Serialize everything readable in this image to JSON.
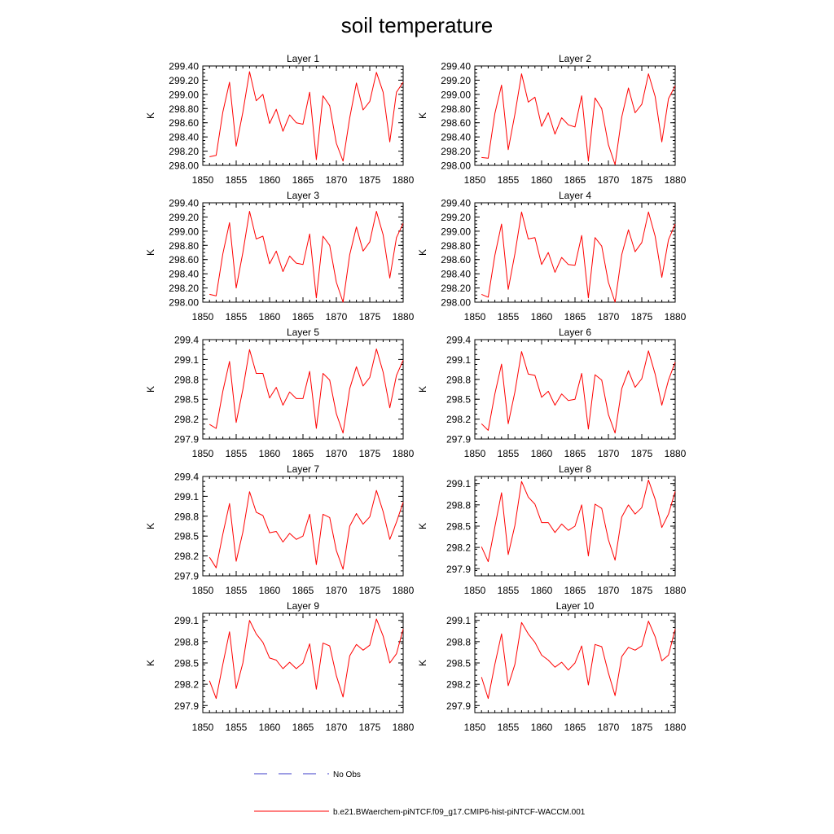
{
  "figure": {
    "title": "soil temperature",
    "legend": [
      {
        "label": "No Obs",
        "color": "#3b3bc8",
        "dash": true
      },
      {
        "label": "b.e21.BWaerchem-piNTCF.f09_g17.CMIP6-hist-piNTCF-WACCM.001",
        "color": "#ff0000",
        "dash": false
      }
    ]
  },
  "chart_data": [
    {
      "type": "line",
      "title": "Layer 1",
      "ylabel": "K",
      "xlim": [
        1850,
        1880
      ],
      "xticks": [
        1850,
        1855,
        1860,
        1865,
        1870,
        1875,
        1880
      ],
      "ylim": [
        298.0,
        299.4
      ],
      "yticks": [
        298.0,
        298.2,
        298.4,
        298.6,
        298.8,
        299.0,
        299.2,
        299.4
      ],
      "ydecimals": 2,
      "x": [
        1851,
        1852,
        1853,
        1854,
        1855,
        1856,
        1857,
        1858,
        1859,
        1860,
        1861,
        1862,
        1863,
        1864,
        1865,
        1866,
        1867,
        1868,
        1869,
        1870,
        1871,
        1872,
        1873,
        1874,
        1875,
        1876,
        1877,
        1878,
        1879,
        1880
      ],
      "series": [
        {
          "color": "#ff0000",
          "values": [
            298.12,
            298.14,
            298.75,
            299.17,
            298.27,
            298.75,
            299.32,
            298.91,
            299.0,
            298.59,
            298.79,
            298.48,
            298.71,
            298.6,
            298.58,
            299.03,
            298.08,
            298.98,
            298.84,
            298.31,
            298.06,
            298.67,
            299.16,
            298.78,
            298.9,
            299.31,
            299.03,
            298.33,
            299.03,
            299.17
          ]
        }
      ]
    },
    {
      "type": "line",
      "title": "Layer 2",
      "ylabel": "K",
      "xlim": [
        1850,
        1880
      ],
      "xticks": [
        1850,
        1855,
        1860,
        1865,
        1870,
        1875,
        1880
      ],
      "ylim": [
        298.0,
        299.4
      ],
      "yticks": [
        298.0,
        298.2,
        298.4,
        298.6,
        298.8,
        299.0,
        299.2,
        299.4
      ],
      "ydecimals": 2,
      "x": [
        1851,
        1852,
        1853,
        1854,
        1855,
        1856,
        1857,
        1858,
        1859,
        1860,
        1861,
        1862,
        1863,
        1864,
        1865,
        1866,
        1867,
        1868,
        1869,
        1870,
        1871,
        1872,
        1873,
        1874,
        1875,
        1876,
        1877,
        1878,
        1879,
        1880
      ],
      "series": [
        {
          "color": "#ff0000",
          "values": [
            298.11,
            298.1,
            298.73,
            299.13,
            298.22,
            298.72,
            299.29,
            298.89,
            298.96,
            298.55,
            298.74,
            298.44,
            298.67,
            298.57,
            298.54,
            298.98,
            298.06,
            298.95,
            298.8,
            298.29,
            298.01,
            298.68,
            299.09,
            298.74,
            298.86,
            299.29,
            298.97,
            298.33,
            298.94,
            299.12
          ]
        }
      ]
    },
    {
      "type": "line",
      "title": "Layer 3",
      "ylabel": "K",
      "xlim": [
        1850,
        1880
      ],
      "xticks": [
        1850,
        1855,
        1860,
        1865,
        1870,
        1875,
        1880
      ],
      "ylim": [
        298.0,
        299.4
      ],
      "yticks": [
        298.0,
        298.2,
        298.4,
        298.6,
        298.8,
        299.0,
        299.2,
        299.4
      ],
      "ydecimals": 2,
      "x": [
        1851,
        1852,
        1853,
        1854,
        1855,
        1856,
        1857,
        1858,
        1859,
        1860,
        1861,
        1862,
        1863,
        1864,
        1865,
        1866,
        1867,
        1868,
        1869,
        1870,
        1871,
        1872,
        1873,
        1874,
        1875,
        1876,
        1877,
        1878,
        1879,
        1880
      ],
      "series": [
        {
          "color": "#ff0000",
          "values": [
            298.11,
            298.09,
            298.68,
            299.12,
            298.2,
            298.7,
            299.28,
            298.89,
            298.93,
            298.54,
            298.72,
            298.43,
            298.65,
            298.55,
            298.53,
            298.96,
            298.06,
            298.93,
            298.8,
            298.28,
            298.0,
            298.67,
            299.06,
            298.72,
            298.85,
            299.28,
            298.95,
            298.34,
            298.91,
            299.11
          ]
        }
      ]
    },
    {
      "type": "line",
      "title": "Layer 4",
      "ylabel": "K",
      "xlim": [
        1850,
        1880
      ],
      "xticks": [
        1850,
        1855,
        1860,
        1865,
        1870,
        1875,
        1880
      ],
      "ylim": [
        298.0,
        299.4
      ],
      "yticks": [
        298.0,
        298.2,
        298.4,
        298.6,
        298.8,
        299.0,
        299.2,
        299.4
      ],
      "ydecimals": 2,
      "x": [
        1851,
        1852,
        1853,
        1854,
        1855,
        1856,
        1857,
        1858,
        1859,
        1860,
        1861,
        1862,
        1863,
        1864,
        1865,
        1866,
        1867,
        1868,
        1869,
        1870,
        1871,
        1872,
        1873,
        1874,
        1875,
        1876,
        1877,
        1878,
        1879,
        1880
      ],
      "series": [
        {
          "color": "#ff0000",
          "values": [
            298.11,
            298.07,
            298.66,
            299.1,
            298.18,
            298.68,
            299.27,
            298.89,
            298.91,
            298.53,
            298.7,
            298.42,
            298.63,
            298.53,
            298.52,
            298.94,
            298.06,
            298.91,
            298.79,
            298.28,
            298.0,
            298.67,
            299.02,
            298.71,
            298.84,
            299.27,
            298.93,
            298.35,
            298.88,
            299.1
          ]
        }
      ]
    },
    {
      "type": "line",
      "title": "Layer 5",
      "ylabel": "K",
      "xlim": [
        1850,
        1880
      ],
      "xticks": [
        1850,
        1855,
        1860,
        1865,
        1870,
        1875,
        1880
      ],
      "ylim": [
        297.9,
        299.4
      ],
      "yticks": [
        297.9,
        298.2,
        298.5,
        298.8,
        299.1,
        299.4
      ],
      "ydecimals": 1,
      "x": [
        1851,
        1852,
        1853,
        1854,
        1855,
        1856,
        1857,
        1858,
        1859,
        1860,
        1861,
        1862,
        1863,
        1864,
        1865,
        1866,
        1867,
        1868,
        1869,
        1870,
        1871,
        1872,
        1873,
        1874,
        1875,
        1876,
        1877,
        1878,
        1879,
        1880
      ],
      "series": [
        {
          "color": "#ff0000",
          "values": [
            298.12,
            298.06,
            298.62,
            299.07,
            298.15,
            298.65,
            299.25,
            298.89,
            298.89,
            298.52,
            298.68,
            298.41,
            298.61,
            298.51,
            298.51,
            298.92,
            298.06,
            298.89,
            298.79,
            298.28,
            297.99,
            298.66,
            298.99,
            298.7,
            298.83,
            299.26,
            298.91,
            298.37,
            298.86,
            299.09
          ]
        }
      ]
    },
    {
      "type": "line",
      "title": "Layer 6",
      "ylabel": "K",
      "xlim": [
        1850,
        1880
      ],
      "xticks": [
        1850,
        1855,
        1860,
        1865,
        1870,
        1875,
        1880
      ],
      "ylim": [
        297.9,
        299.4
      ],
      "yticks": [
        297.9,
        298.2,
        298.5,
        298.8,
        299.1,
        299.4
      ],
      "ydecimals": 1,
      "x": [
        1851,
        1852,
        1853,
        1854,
        1855,
        1856,
        1857,
        1858,
        1859,
        1860,
        1861,
        1862,
        1863,
        1864,
        1865,
        1866,
        1867,
        1868,
        1869,
        1870,
        1871,
        1872,
        1873,
        1874,
        1875,
        1876,
        1877,
        1878,
        1879,
        1880
      ],
      "series": [
        {
          "color": "#ff0000",
          "values": [
            298.13,
            298.03,
            298.58,
            299.03,
            298.13,
            298.61,
            299.22,
            298.88,
            298.86,
            298.53,
            298.62,
            298.41,
            298.58,
            298.48,
            298.5,
            298.89,
            298.05,
            298.87,
            298.79,
            298.27,
            297.99,
            298.66,
            298.93,
            298.68,
            298.81,
            299.23,
            298.88,
            298.41,
            298.79,
            299.06
          ]
        }
      ]
    },
    {
      "type": "line",
      "title": "Layer 7",
      "ylabel": "K",
      "xlim": [
        1850,
        1880
      ],
      "xticks": [
        1850,
        1855,
        1860,
        1865,
        1870,
        1875,
        1880
      ],
      "ylim": [
        297.9,
        299.4
      ],
      "yticks": [
        297.9,
        298.2,
        298.5,
        298.8,
        299.1,
        299.4
      ],
      "ydecimals": 1,
      "x": [
        1851,
        1852,
        1853,
        1854,
        1855,
        1856,
        1857,
        1858,
        1859,
        1860,
        1861,
        1862,
        1863,
        1864,
        1865,
        1866,
        1867,
        1868,
        1869,
        1870,
        1871,
        1872,
        1873,
        1874,
        1875,
        1876,
        1877,
        1878,
        1879,
        1880
      ],
      "series": [
        {
          "color": "#ff0000",
          "values": [
            298.18,
            298.02,
            298.53,
            298.99,
            298.12,
            298.56,
            299.17,
            298.86,
            298.81,
            298.55,
            298.57,
            298.41,
            298.54,
            298.45,
            298.5,
            298.83,
            298.07,
            298.83,
            298.78,
            298.28,
            298.0,
            298.65,
            298.84,
            298.68,
            298.79,
            299.19,
            298.87,
            298.45,
            298.71,
            299.01
          ]
        }
      ]
    },
    {
      "type": "line",
      "title": "Layer 8",
      "ylabel": "K",
      "xlim": [
        1850,
        1880
      ],
      "xticks": [
        1850,
        1855,
        1860,
        1865,
        1870,
        1875,
        1880
      ],
      "ylim": [
        297.8,
        299.2
      ],
      "yticks": [
        297.9,
        298.2,
        298.5,
        298.8,
        299.1
      ],
      "ydecimals": 1,
      "x": [
        1851,
        1852,
        1853,
        1854,
        1855,
        1856,
        1857,
        1858,
        1859,
        1860,
        1861,
        1862,
        1863,
        1864,
        1865,
        1866,
        1867,
        1868,
        1869,
        1870,
        1871,
        1872,
        1873,
        1874,
        1875,
        1876,
        1877,
        1878,
        1879,
        1880
      ],
      "series": [
        {
          "color": "#ff0000",
          "values": [
            298.21,
            298.0,
            298.49,
            298.97,
            298.1,
            298.51,
            299.13,
            298.91,
            298.81,
            298.55,
            298.55,
            298.41,
            298.53,
            298.44,
            298.5,
            298.8,
            298.08,
            298.81,
            298.75,
            298.31,
            298.02,
            298.63,
            298.8,
            298.67,
            298.76,
            299.15,
            298.88,
            298.48,
            298.67,
            298.99
          ]
        }
      ]
    },
    {
      "type": "line",
      "title": "Layer 9",
      "ylabel": "K",
      "xlim": [
        1850,
        1880
      ],
      "xticks": [
        1850,
        1855,
        1860,
        1865,
        1870,
        1875,
        1880
      ],
      "ylim": [
        297.8,
        299.2
      ],
      "yticks": [
        297.9,
        298.2,
        298.5,
        298.8,
        299.1
      ],
      "ydecimals": 1,
      "x": [
        1851,
        1852,
        1853,
        1854,
        1855,
        1856,
        1857,
        1858,
        1859,
        1860,
        1861,
        1862,
        1863,
        1864,
        1865,
        1866,
        1867,
        1868,
        1869,
        1870,
        1871,
        1872,
        1873,
        1874,
        1875,
        1876,
        1877,
        1878,
        1879,
        1880
      ],
      "series": [
        {
          "color": "#ff0000",
          "values": [
            298.25,
            298.0,
            298.48,
            298.94,
            298.14,
            298.5,
            299.1,
            298.91,
            298.79,
            298.57,
            298.54,
            298.42,
            298.51,
            298.42,
            298.5,
            298.77,
            298.13,
            298.78,
            298.74,
            298.32,
            298.02,
            298.6,
            298.76,
            298.68,
            298.75,
            299.12,
            298.88,
            298.5,
            298.63,
            298.98
          ]
        }
      ]
    },
    {
      "type": "line",
      "title": "Layer 10",
      "ylabel": "K",
      "xlim": [
        1850,
        1880
      ],
      "xticks": [
        1850,
        1855,
        1860,
        1865,
        1870,
        1875,
        1880
      ],
      "ylim": [
        297.8,
        299.2
      ],
      "yticks": [
        297.9,
        298.2,
        298.5,
        298.8,
        299.1
      ],
      "ydecimals": 1,
      "x": [
        1851,
        1852,
        1853,
        1854,
        1855,
        1856,
        1857,
        1858,
        1859,
        1860,
        1861,
        1862,
        1863,
        1864,
        1865,
        1866,
        1867,
        1868,
        1869,
        1870,
        1871,
        1872,
        1873,
        1874,
        1875,
        1876,
        1877,
        1878,
        1879,
        1880
      ],
      "series": [
        {
          "color": "#ff0000",
          "values": [
            298.3,
            298.0,
            298.48,
            298.91,
            298.18,
            298.48,
            299.07,
            298.91,
            298.79,
            298.61,
            298.54,
            298.44,
            298.51,
            298.4,
            298.5,
            298.74,
            298.19,
            298.76,
            298.73,
            298.36,
            298.04,
            298.59,
            298.72,
            298.68,
            298.74,
            299.09,
            298.87,
            298.53,
            298.61,
            298.98
          ]
        }
      ]
    }
  ]
}
